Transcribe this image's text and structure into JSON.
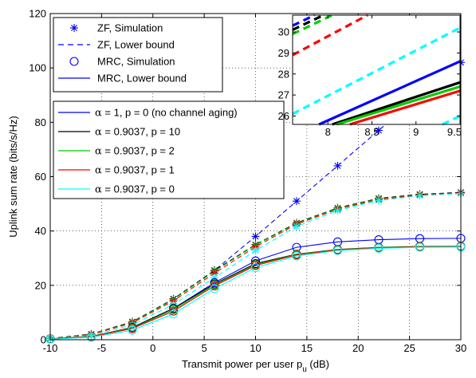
{
  "chart_data": [
    {
      "type": "line",
      "xlabel": "Transmit power per user p",
      "xlabel_subscript": "u",
      "xlabel_suffix": " (dB)",
      "ylabel": "Uplink sum rate (bits/s/Hz)",
      "xlim": [
        -10,
        30
      ],
      "ylim": [
        0,
        120
      ],
      "xticks": [
        -10,
        -5,
        0,
        5,
        10,
        15,
        20,
        25,
        30
      ],
      "yticks": [
        0,
        20,
        40,
        60,
        80,
        100,
        120
      ],
      "grid": true,
      "legend_markers": {
        "position": "top-left",
        "entries": [
          {
            "label": "ZF, Simulation",
            "style": "asterisk"
          },
          {
            "label": "ZF, Lower bound",
            "style": "dashed"
          },
          {
            "label": "MRC, Simulation",
            "style": "circle"
          },
          {
            "label": "MRC, Lower bound",
            "style": "solid"
          }
        ]
      },
      "legend_colors": {
        "position": "middle-left",
        "alpha_symbol": "α",
        "entries": [
          {
            "label": " = 1, p = 0 (no channel aging)",
            "color": "#0000ff"
          },
          {
            "label": " = 0.9037, p = 10",
            "color": "#000000"
          },
          {
            "label": " = 0.9037, p = 2",
            "color": "#00cc00"
          },
          {
            "label": " = 0.9037, p = 1",
            "color": "#ff0000"
          },
          {
            "label": " = 0.9037, p = 0",
            "color": "#00ffff"
          }
        ]
      },
      "x": [
        -10,
        -6,
        -2,
        2,
        6,
        10,
        14,
        18,
        22,
        26,
        30
      ],
      "series": [
        {
          "name": "ZF, α = 1, p = 0",
          "scheme": "ZF",
          "color": "#0000ff",
          "values": [
            0.4,
            2.0,
            6.5,
            15.0,
            25.5,
            38.0,
            51.0,
            64.0,
            77.0,
            90.0,
            102.0
          ]
        },
        {
          "name": "ZF, α = 0.9037, p = 10",
          "scheme": "ZF",
          "color": "#000000",
          "values": [
            0.5,
            2.1,
            6.6,
            15.0,
            25.5,
            35.0,
            43.0,
            48.5,
            52.0,
            53.5,
            54.2
          ]
        },
        {
          "name": "ZF, α = 0.9037, p = 2",
          "scheme": "ZF",
          "color": "#00cc00",
          "values": [
            0.45,
            2.0,
            6.4,
            14.8,
            25.2,
            34.8,
            42.8,
            48.3,
            51.8,
            53.3,
            54.0
          ]
        },
        {
          "name": "ZF, α = 0.9037, p = 1",
          "scheme": "ZF",
          "color": "#ff0000",
          "values": [
            0.4,
            1.9,
            6.2,
            14.3,
            24.5,
            34.2,
            42.5,
            48.0,
            51.6,
            53.2,
            54.0
          ]
        },
        {
          "name": "ZF, α = 0.9037, p = 0",
          "scheme": "ZF",
          "color": "#00ffff",
          "values": [
            0.3,
            1.6,
            5.5,
            13.0,
            22.8,
            32.8,
            41.7,
            47.5,
            51.2,
            53.0,
            53.8
          ]
        },
        {
          "name": "MRC, α = 1, p = 0",
          "scheme": "MRC",
          "color": "#0000ff",
          "values": [
            0.3,
            1.2,
            4.5,
            11.5,
            21.0,
            29.0,
            34.0,
            36.0,
            36.8,
            37.2,
            37.3
          ]
        },
        {
          "name": "MRC, α = 0.9037, p = 10",
          "scheme": "MRC",
          "color": "#000000",
          "values": [
            0.3,
            1.2,
            4.5,
            11.5,
            20.5,
            28.0,
            31.5,
            33.2,
            34.0,
            34.3,
            34.4
          ]
        },
        {
          "name": "MRC, α = 0.9037, p = 2",
          "scheme": "MRC",
          "color": "#00cc00",
          "values": [
            0.3,
            1.2,
            4.3,
            11.0,
            20.2,
            27.6,
            31.4,
            33.1,
            33.9,
            34.2,
            34.3
          ]
        },
        {
          "name": "MRC, α = 0.9037, p = 1",
          "scheme": "MRC",
          "color": "#ff0000",
          "values": [
            0.3,
            1.1,
            4.1,
            10.5,
            19.8,
            27.3,
            31.2,
            33.0,
            33.8,
            34.1,
            34.2
          ]
        },
        {
          "name": "MRC, α = 0.9037, p = 0",
          "scheme": "MRC",
          "color": "#00ffff",
          "values": [
            0.2,
            0.9,
            3.5,
            9.5,
            18.8,
            26.5,
            30.8,
            32.8,
            33.6,
            34.0,
            34.1
          ]
        }
      ]
    },
    {
      "type": "line",
      "role": "inset",
      "xlim": [
        7.6,
        9.5
      ],
      "ylim": [
        25.6,
        30.8
      ],
      "xticks": [
        8,
        8.5,
        9,
        9.5
      ],
      "xtick_labels": [
        "8",
        "8.5",
        "9",
        "9.5"
      ],
      "yticks": [
        26,
        27,
        28,
        29,
        30
      ],
      "grid": false,
      "series": [
        {
          "name": "ZF, α = 1, p = 0",
          "style": "dashed",
          "color": "#0000ff",
          "x": [
            7.6,
            7.85
          ],
          "values": [
            30.3,
            30.8
          ]
        },
        {
          "name": "ZF, α = 0.9037, p = 10",
          "style": "dashed",
          "color": "#000000",
          "x": [
            7.6,
            7.95
          ],
          "values": [
            30.1,
            30.8
          ]
        },
        {
          "name": "ZF, α = 0.9037, p = 2",
          "style": "dashed",
          "color": "#00cc00",
          "x": [
            7.6,
            8.05
          ],
          "values": [
            29.9,
            30.8
          ]
        },
        {
          "name": "ZF, α = 0.9037, p = 1",
          "style": "dashed",
          "color": "#ff0000",
          "x": [
            7.6,
            8.45
          ],
          "values": [
            28.9,
            30.8
          ]
        },
        {
          "name": "ZF, α = 0.9037, p = 0",
          "style": "dashed",
          "color": "#00ffff",
          "x": [
            7.6,
            9.5
          ],
          "values": [
            26.1,
            30.2
          ]
        },
        {
          "name": "MRC, α = 1, p = 0",
          "style": "solid",
          "color": "#0000ff",
          "x": [
            7.9,
            9.5
          ],
          "values": [
            25.6,
            28.6
          ]
        },
        {
          "name": "MRC, α = 0.9037, p = 10",
          "style": "solid",
          "color": "#000000",
          "x": [
            8.05,
            9.5
          ],
          "values": [
            25.6,
            27.6
          ]
        },
        {
          "name": "MRC, α = 0.9037, p = 2",
          "style": "solid",
          "color": "#00cc00",
          "x": [
            8.1,
            9.5
          ],
          "values": [
            25.6,
            27.4
          ]
        },
        {
          "name": "MRC, α = 0.9037, p = 1",
          "style": "solid",
          "color": "#ff0000",
          "x": [
            8.25,
            9.5
          ],
          "values": [
            25.6,
            27.2
          ]
        },
        {
          "name": "MRC, α = 0.9037, p = 0",
          "style": "dashed",
          "color": "#00ffff",
          "x": [
            9.3,
            9.5
          ],
          "values": [
            25.6,
            26.0
          ]
        }
      ]
    }
  ]
}
